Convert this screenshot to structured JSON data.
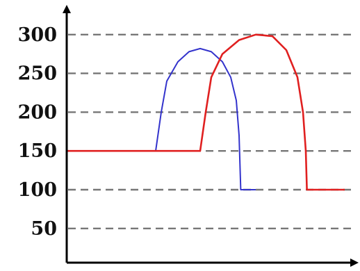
{
  "chart_data": {
    "type": "line",
    "title": "",
    "xlabel": "",
    "ylabel": "",
    "ylim": [
      0,
      320
    ],
    "yticks": [
      50,
      100,
      150,
      200,
      250,
      300
    ],
    "grid": "horizontal dashed",
    "series": [
      {
        "color": "#e02020",
        "points": [
          [
            0,
            150
          ],
          [
            24,
            150
          ],
          [
            25,
            200
          ],
          [
            26,
            245
          ],
          [
            28,
            275
          ],
          [
            31,
            293
          ],
          [
            34,
            300
          ],
          [
            37,
            298
          ],
          [
            39.5,
            280
          ],
          [
            41.5,
            245
          ],
          [
            42.5,
            200
          ],
          [
            43,
            150
          ],
          [
            43.2,
            100
          ],
          [
            50,
            100
          ]
        ]
      },
      {
        "color": "#3333cc",
        "points": [
          [
            13,
            150
          ],
          [
            16,
            150
          ],
          [
            17,
            200
          ],
          [
            18,
            240
          ],
          [
            20,
            265
          ],
          [
            22,
            278
          ],
          [
            24,
            282
          ],
          [
            26,
            278
          ],
          [
            28,
            265
          ],
          [
            29.5,
            245
          ],
          [
            30.5,
            215
          ],
          [
            31,
            170
          ],
          [
            31.3,
            100
          ],
          [
            34,
            100
          ]
        ]
      }
    ],
    "xlim": [
      0,
      50
    ]
  }
}
